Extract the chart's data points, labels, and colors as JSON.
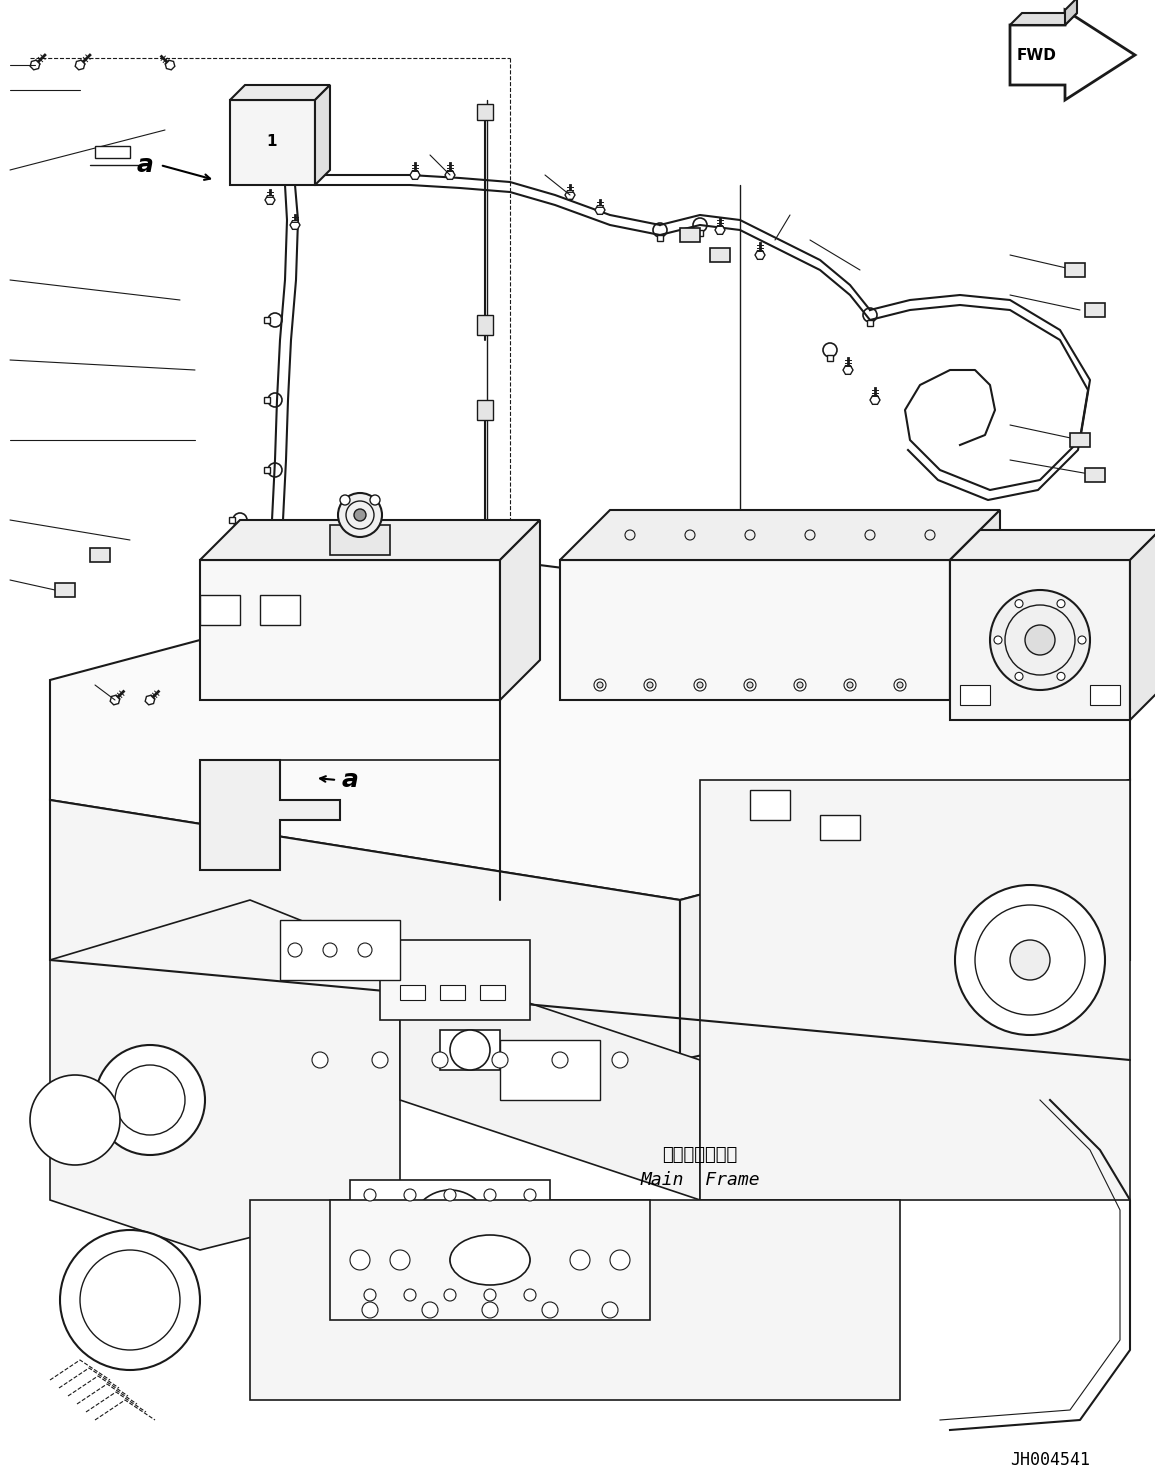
{
  "background_color": "#ffffff",
  "line_color": "#1a1a1a",
  "fig_width": 11.55,
  "fig_height": 14.79,
  "dpi": 100,
  "part_number": "JH004541",
  "fwd_label": "FWD",
  "main_frame_jp": "メインフレーム",
  "main_frame_en": "Main  Frame"
}
